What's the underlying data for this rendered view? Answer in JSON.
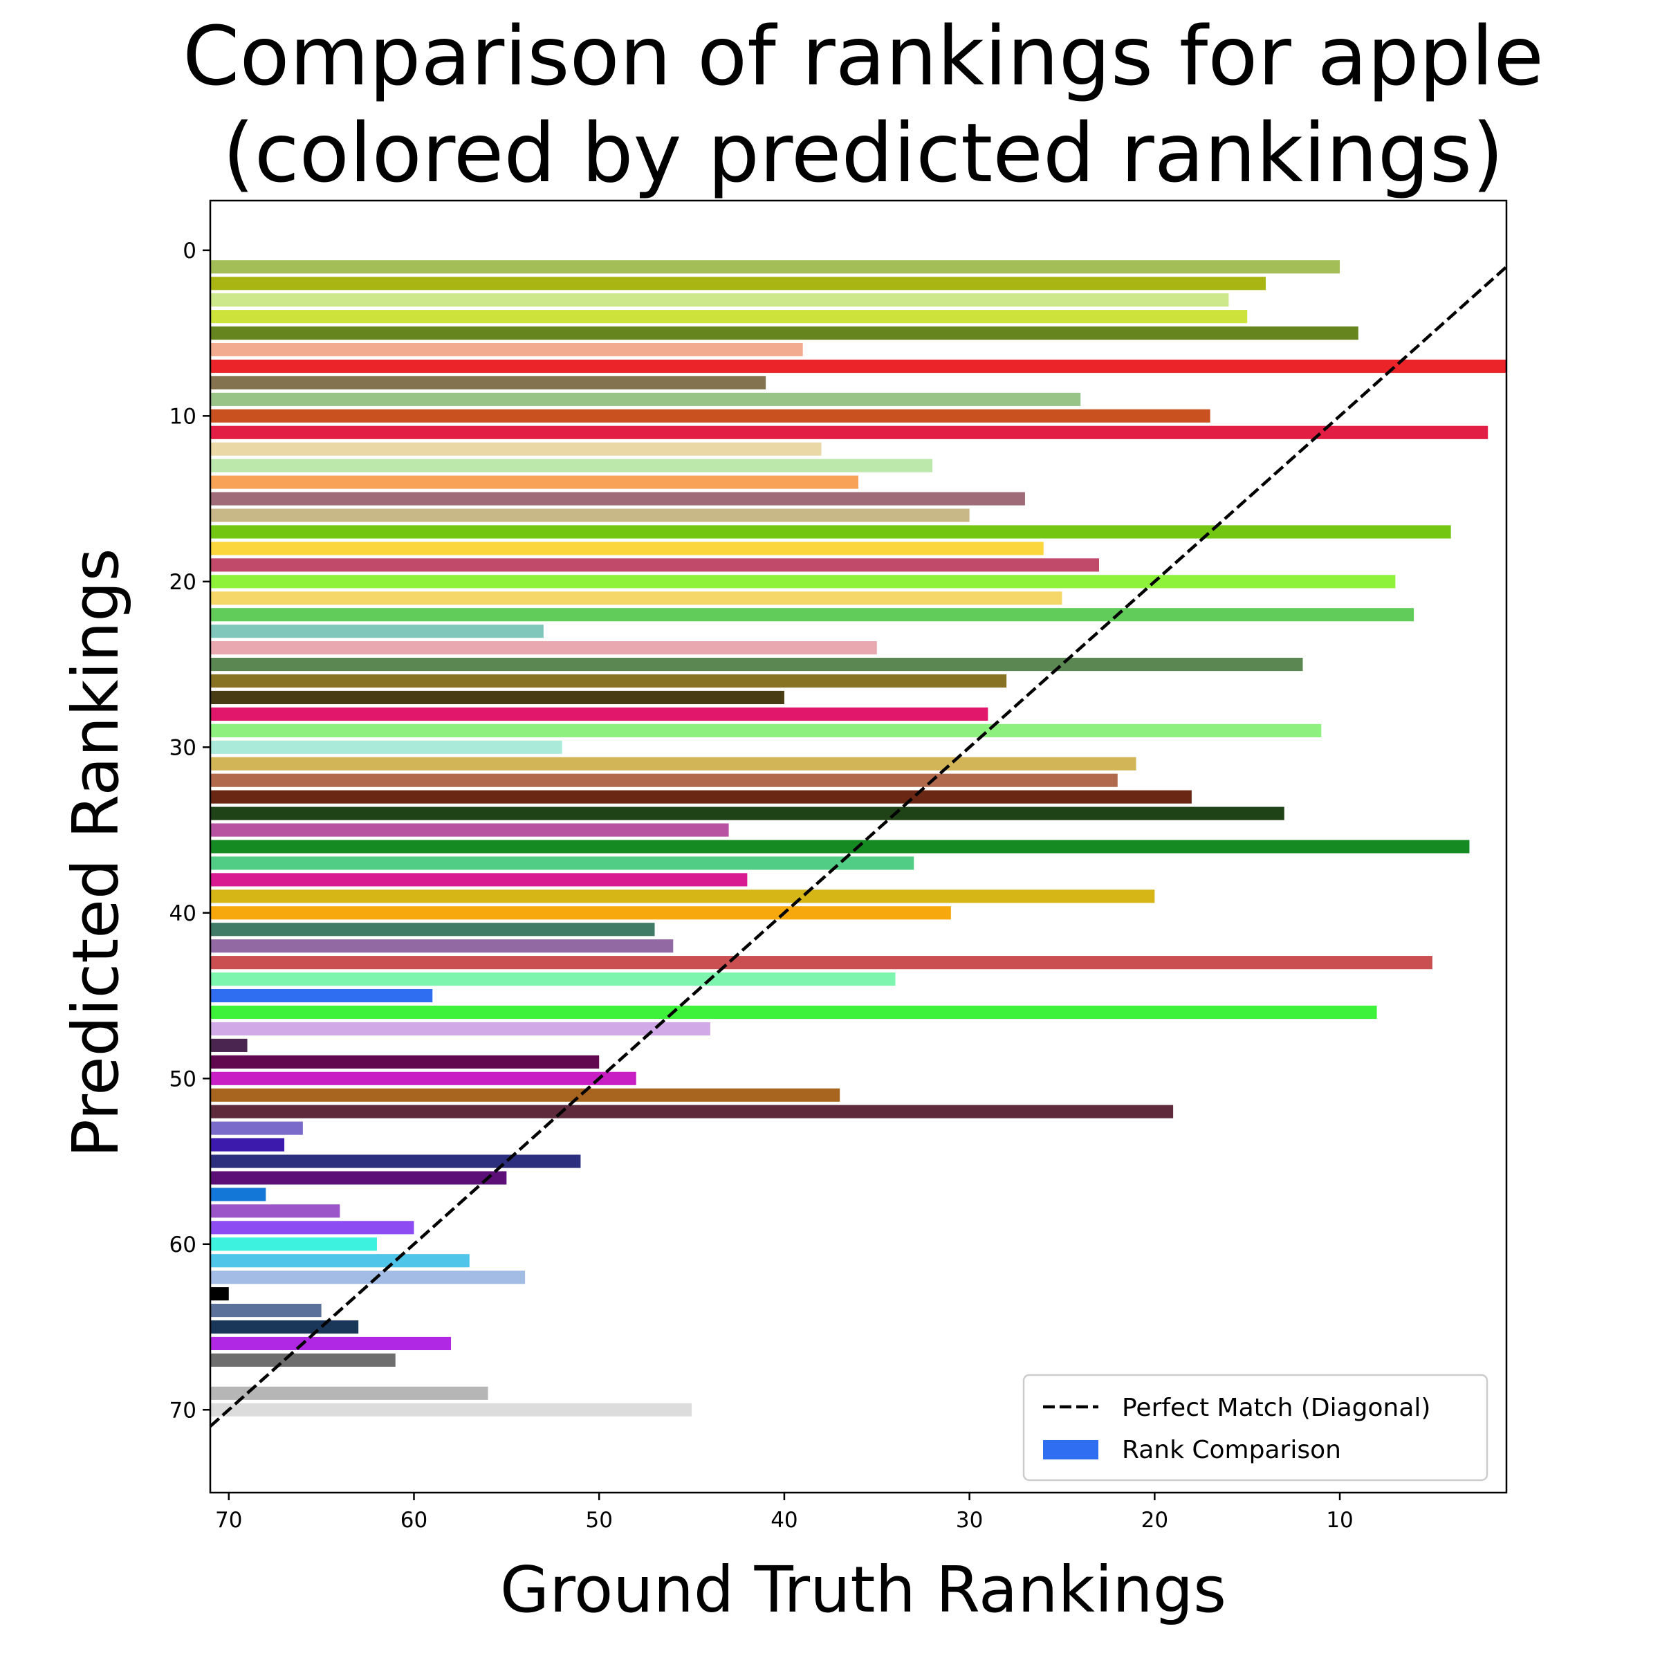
{
  "chart_data": {
    "type": "bar",
    "orientation": "horizontal",
    "title_lines": [
      "Comparison of rankings for apple",
      "(colored by predicted rankings)"
    ],
    "xlabel": "Ground Truth Rankings",
    "ylabel": "Predicted Rankings",
    "x_inverted": true,
    "y_inverted": true,
    "xlim": [
      71,
      1
    ],
    "ylim": [
      75,
      -3
    ],
    "xticks": [
      70,
      60,
      50,
      40,
      30,
      20,
      10
    ],
    "yticks": [
      0,
      10,
      20,
      30,
      40,
      50,
      60,
      70
    ],
    "diagonal": {
      "name": "Perfect Match (Diagonal)",
      "style": "dashed",
      "color": "#000000",
      "from": [
        71,
        71
      ],
      "to": [
        1,
        1
      ]
    },
    "legend": {
      "placement": "lower-right",
      "entries": [
        "Perfect Match (Diagonal)",
        "Rank Comparison"
      ],
      "patch_color": "#2f6ef0"
    },
    "series_name": "Rank Comparison",
    "bars": [
      {
        "predicted": 1,
        "ground_truth": 10,
        "color": "#a3bd57"
      },
      {
        "predicted": 2,
        "ground_truth": 14,
        "color": "#a8b512"
      },
      {
        "predicted": 3,
        "ground_truth": 16,
        "color": "#cde88a"
      },
      {
        "predicted": 4,
        "ground_truth": 15,
        "color": "#cde33c"
      },
      {
        "predicted": 5,
        "ground_truth": 9,
        "color": "#66851f"
      },
      {
        "predicted": 6,
        "ground_truth": 39,
        "color": "#f3ab8f"
      },
      {
        "predicted": 7,
        "ground_truth": 1,
        "color": "#ea2428"
      },
      {
        "predicted": 8,
        "ground_truth": 41,
        "color": "#84734f"
      },
      {
        "predicted": 9,
        "ground_truth": 24,
        "color": "#98c487"
      },
      {
        "predicted": 10,
        "ground_truth": 17,
        "color": "#c9501f"
      },
      {
        "predicted": 11,
        "ground_truth": 2,
        "color": "#e21e45"
      },
      {
        "predicted": 12,
        "ground_truth": 38,
        "color": "#ead9a7"
      },
      {
        "predicted": 13,
        "ground_truth": 32,
        "color": "#bde8ab"
      },
      {
        "predicted": 14,
        "ground_truth": 36,
        "color": "#f8a258"
      },
      {
        "predicted": 15,
        "ground_truth": 27,
        "color": "#a06b78"
      },
      {
        "predicted": 16,
        "ground_truth": 30,
        "color": "#c9b887"
      },
      {
        "predicted": 17,
        "ground_truth": 4,
        "color": "#73c712"
      },
      {
        "predicted": 18,
        "ground_truth": 26,
        "color": "#fbd63d"
      },
      {
        "predicted": 19,
        "ground_truth": 23,
        "color": "#c1496a"
      },
      {
        "predicted": 20,
        "ground_truth": 7,
        "color": "#8ef23a"
      },
      {
        "predicted": 21,
        "ground_truth": 25,
        "color": "#f5d668"
      },
      {
        "predicted": 22,
        "ground_truth": 6,
        "color": "#62cc5b"
      },
      {
        "predicted": 23,
        "ground_truth": 53,
        "color": "#80c7bb"
      },
      {
        "predicted": 24,
        "ground_truth": 35,
        "color": "#e9a7b0"
      },
      {
        "predicted": 25,
        "ground_truth": 12,
        "color": "#5a8752"
      },
      {
        "predicted": 26,
        "ground_truth": 28,
        "color": "#877322"
      },
      {
        "predicted": 27,
        "ground_truth": 40,
        "color": "#483c15"
      },
      {
        "predicted": 28,
        "ground_truth": 29,
        "color": "#e0176b"
      },
      {
        "predicted": 29,
        "ground_truth": 11,
        "color": "#8ef07e"
      },
      {
        "predicted": 30,
        "ground_truth": 52,
        "color": "#a9ead9"
      },
      {
        "predicted": 31,
        "ground_truth": 21,
        "color": "#d1b557"
      },
      {
        "predicted": 32,
        "ground_truth": 22,
        "color": "#b16a4c"
      },
      {
        "predicted": 33,
        "ground_truth": 18,
        "color": "#6a2814"
      },
      {
        "predicted": 34,
        "ground_truth": 13,
        "color": "#1f4216"
      },
      {
        "predicted": 35,
        "ground_truth": 43,
        "color": "#b753a1"
      },
      {
        "predicted": 36,
        "ground_truth": 3,
        "color": "#168a22"
      },
      {
        "predicted": 37,
        "ground_truth": 33,
        "color": "#52cd86"
      },
      {
        "predicted": 38,
        "ground_truth": 42,
        "color": "#d91b92"
      },
      {
        "predicted": 39,
        "ground_truth": 20,
        "color": "#d6b516"
      },
      {
        "predicted": 40,
        "ground_truth": 31,
        "color": "#f7a80d"
      },
      {
        "predicted": 41,
        "ground_truth": 47,
        "color": "#3f7b66"
      },
      {
        "predicted": 42,
        "ground_truth": 46,
        "color": "#9269a3"
      },
      {
        "predicted": 43,
        "ground_truth": 5,
        "color": "#c94f50"
      },
      {
        "predicted": 44,
        "ground_truth": 34,
        "color": "#7ef5ae"
      },
      {
        "predicted": 45,
        "ground_truth": 59,
        "color": "#2f6ef0"
      },
      {
        "predicted": 46,
        "ground_truth": 8,
        "color": "#3ef23c"
      },
      {
        "predicted": 47,
        "ground_truth": 44,
        "color": "#d0a9e6"
      },
      {
        "predicted": 48,
        "ground_truth": 69,
        "color": "#4a2550"
      },
      {
        "predicted": 49,
        "ground_truth": 50,
        "color": "#60074f"
      },
      {
        "predicted": 50,
        "ground_truth": 48,
        "color": "#c81fc4"
      },
      {
        "predicted": 51,
        "ground_truth": 37,
        "color": "#a8651f"
      },
      {
        "predicted": 52,
        "ground_truth": 19,
        "color": "#5e2a3c"
      },
      {
        "predicted": 53,
        "ground_truth": 66,
        "color": "#7a6ac9"
      },
      {
        "predicted": 54,
        "ground_truth": 67,
        "color": "#3c1aab"
      },
      {
        "predicted": 55,
        "ground_truth": 51,
        "color": "#2b2f7d"
      },
      {
        "predicted": 56,
        "ground_truth": 55,
        "color": "#5c0f77"
      },
      {
        "predicted": 57,
        "ground_truth": 68,
        "color": "#1277d6"
      },
      {
        "predicted": 58,
        "ground_truth": 64,
        "color": "#9c54c9"
      },
      {
        "predicted": 59,
        "ground_truth": 60,
        "color": "#8c4cf2"
      },
      {
        "predicted": 60,
        "ground_truth": 62,
        "color": "#3ef2e0"
      },
      {
        "predicted": 61,
        "ground_truth": 57,
        "color": "#4fc5ea"
      },
      {
        "predicted": 62,
        "ground_truth": 54,
        "color": "#a2bce6"
      },
      {
        "predicted": 63,
        "ground_truth": 70,
        "color": "#000000"
      },
      {
        "predicted": 64,
        "ground_truth": 65,
        "color": "#5c7199"
      },
      {
        "predicted": 65,
        "ground_truth": 63,
        "color": "#1a3659"
      },
      {
        "predicted": 66,
        "ground_truth": 58,
        "color": "#b028e3"
      },
      {
        "predicted": 67,
        "ground_truth": 61,
        "color": "#6e6e6e"
      },
      {
        "predicted": 69,
        "ground_truth": 56,
        "color": "#b6b6b6"
      },
      {
        "predicted": 70,
        "ground_truth": 45,
        "color": "#dcdcdc"
      }
    ]
  }
}
